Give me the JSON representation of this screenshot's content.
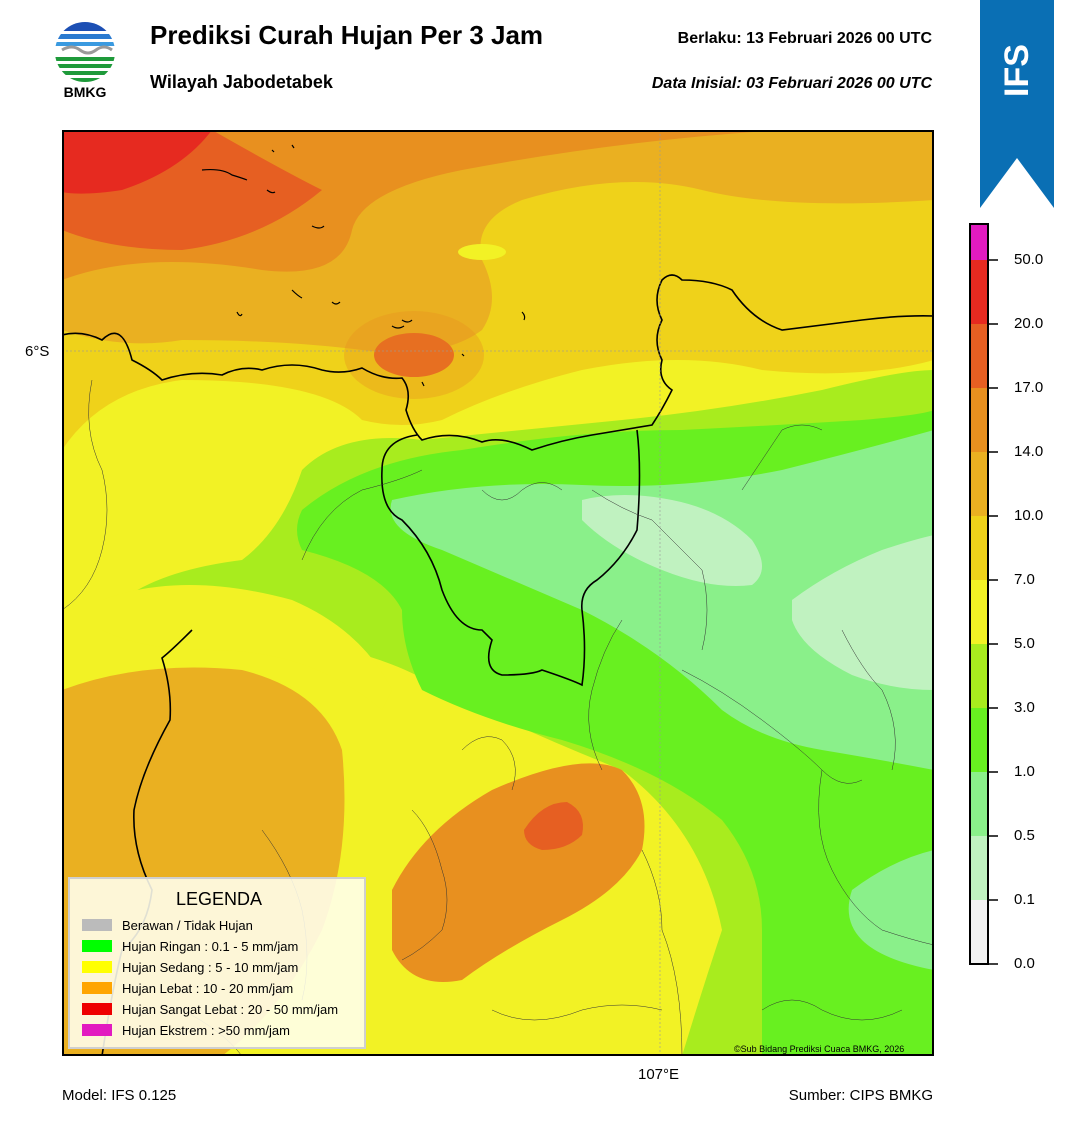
{
  "header": {
    "logo_text": "BMKG",
    "title": "Prediksi Curah Hujan Per 3 Jam",
    "subtitle": "Wilayah Jabodetabek",
    "valid": "Berlaku:  13 Februari 2026 00 UTC",
    "init": "Data Inisial:  03 Februari 2026 00 UTC",
    "ribbon": "IFS"
  },
  "map": {
    "lat_label": "6°S",
    "lon_label": "107°E",
    "copyright": "©Sub Bidang Prediksi Cuaca BMKG, 2026"
  },
  "footer": {
    "model": "Model: IFS 0.125",
    "source": "Sumber: CIPS BMKG"
  },
  "colorbar": {
    "labels": [
      "50.0",
      "20.0",
      "17.0",
      "14.0",
      "10.0",
      "7.0",
      "5.0",
      "3.0",
      "1.0",
      "0.5",
      "0.1",
      "0.0"
    ],
    "colors": [
      "#e21bc0",
      "#e62a20",
      "#e65f22",
      "#e8901f",
      "#eab021",
      "#efd21a",
      "#f2f225",
      "#a8ec1e",
      "#68f020",
      "#8af08a",
      "#c0f2c0",
      "#f2f2f2"
    ]
  },
  "legend": {
    "title": "LEGENDA",
    "items": [
      {
        "label": "Berawan / Tidak Hujan",
        "color": "#bbbbbb"
      },
      {
        "label": "Hujan Ringan : 0.1 - 5 mm/jam",
        "color": "#00ff00"
      },
      {
        "label": "Hujan Sedang : 5 - 10 mm/jam",
        "color": "#ffff00"
      },
      {
        "label": "Hujan Lebat : 10 - 20 mm/jam",
        "color": "#ffa500"
      },
      {
        "label": "Hujan Sangat Lebat : 20 - 50 mm/jam",
        "color": "#ee0000"
      },
      {
        "label": "Hujan Ekstrem : >50 mm/jam",
        "color": "#e21bc0"
      }
    ]
  }
}
